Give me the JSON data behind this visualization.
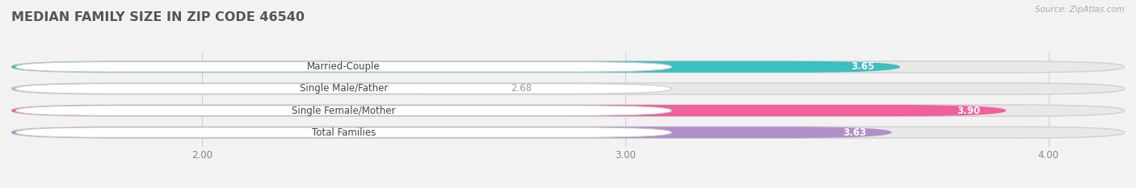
{
  "title": "MEDIAN FAMILY SIZE IN ZIP CODE 46540",
  "source": "Source: ZipAtlas.com",
  "categories": [
    "Married-Couple",
    "Single Male/Father",
    "Single Female/Mother",
    "Total Families"
  ],
  "values": [
    3.65,
    2.68,
    3.9,
    3.63
  ],
  "bar_colors": [
    "#3bbfbf",
    "#aabcdf",
    "#f0609a",
    "#b090c8"
  ],
  "bar_bg_color": "#e8e8e8",
  "xlim_left": 1.55,
  "xlim_right": 4.18,
  "xticks": [
    2.0,
    3.0,
    4.0
  ],
  "xtick_labels": [
    "2.00",
    "3.00",
    "4.00"
  ],
  "value_color_outside": "#999999",
  "title_fontsize": 11.5,
  "label_fontsize": 8.5,
  "value_fontsize": 8.5,
  "source_fontsize": 7.5,
  "background_color": "#f2f2f2"
}
